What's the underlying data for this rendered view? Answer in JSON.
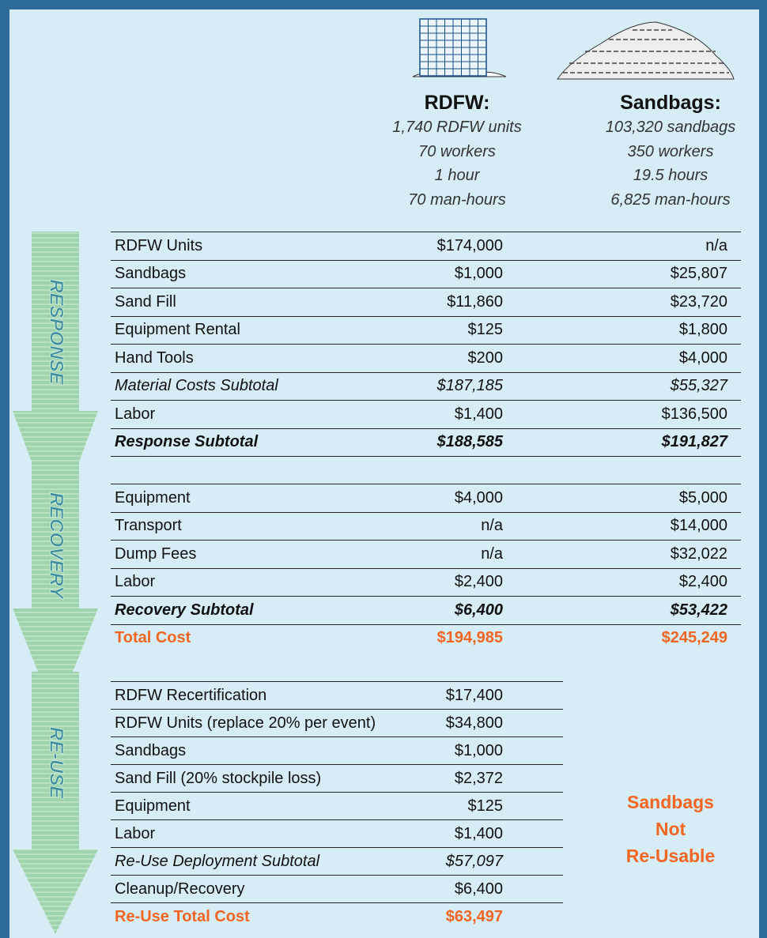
{
  "header": {
    "columns": [
      {
        "name": "RDFW:",
        "details": [
          "1,740 RDFW units",
          "70 workers",
          "1 hour",
          "70 man-hours"
        ]
      },
      {
        "name": "Sandbags:",
        "details": [
          "103,320 sandbags",
          "350 workers",
          "19.5 hours",
          "6,825 man-hours"
        ]
      }
    ]
  },
  "sections": [
    {
      "label": "RESPONSE",
      "rows": [
        [
          "RDFW Units",
          "$174,000",
          "n/a"
        ],
        [
          "Sandbags",
          "$1,000",
          "$25,807"
        ],
        [
          "Sand Fill",
          "$11,860",
          "$23,720"
        ],
        [
          "Equipment Rental",
          "$125",
          "$1,800"
        ],
        [
          "Hand Tools",
          "$200",
          "$4,000"
        ],
        [
          "Material Costs Subtotal",
          "$187,185",
          "$55,327"
        ],
        [
          "Labor",
          "$1,400",
          "$136,500"
        ],
        [
          "Response Subtotal",
          "$188,585",
          "$191,827"
        ]
      ]
    },
    {
      "label": "RECOVERY",
      "rows": [
        [
          "Equipment",
          "$4,000",
          "$5,000"
        ],
        [
          "Transport",
          "n/a",
          "$14,000"
        ],
        [
          "Dump Fees",
          "n/a",
          "$32,022"
        ],
        [
          "Labor",
          "$2,400",
          "$2,400"
        ],
        [
          "Recovery Subtotal",
          "$6,400",
          "$53,422"
        ],
        [
          "Total Cost",
          "$194,985",
          "$245,249"
        ]
      ]
    },
    {
      "label": "RE-USE",
      "rows": [
        [
          "RDFW Recertification",
          "$17,400"
        ],
        [
          "RDFW Units (replace 20% per event)",
          "$34,800"
        ],
        [
          "Sandbags",
          "$1,000"
        ],
        [
          "Sand Fill (20% stockpile loss)",
          "$2,372"
        ],
        [
          "Equipment",
          "$125"
        ],
        [
          "Labor",
          "$1,400"
        ],
        [
          "Re-Use Deployment Subtotal",
          "$57,097"
        ],
        [
          "Cleanup/Recovery",
          "$6,400"
        ],
        [
          "Re-Use Total Cost",
          "$63,497"
        ]
      ],
      "note": [
        "Sandbags",
        "Not",
        "Re-Usable"
      ]
    }
  ]
}
